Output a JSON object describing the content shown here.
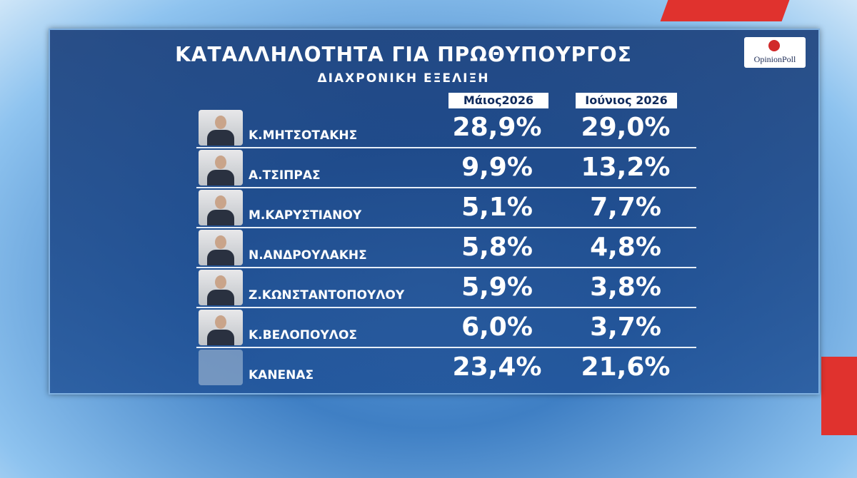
{
  "header": {
    "title": "ΚΑΤΑΛΛΗΛΟΤΗΤΑ ΓΙΑ ΠΡΩΘΥΠΟΥΡΓΟΣ",
    "subtitle": "ΔΙΑΧΡΟΝΙΚΗ ΕΞΕΛΙΞΗ",
    "logo": "OpinionPoll"
  },
  "table": {
    "columns": [
      "Μάιος2026",
      "Ιούνιος 2026"
    ],
    "rows": [
      [
        "Κ.ΜΗΤΣΟΤΑΚΗΣ",
        "28,9%",
        "29,0%"
      ],
      [
        "Α.ΤΣΙΠΡΑΣ",
        "9,9%",
        "13,2%"
      ],
      [
        "Μ.ΚΑΡΥΣΤΙΑΝΟΥ",
        "5,1%",
        "7,7%"
      ],
      [
        "Ν.ΑΝΔΡΟΥΛΑΚΗΣ",
        "5,8%",
        "4,8%"
      ],
      [
        "Ζ.ΚΩΝΣΤΑΝΤΟΠΟΥΛΟΥ",
        "5,9%",
        "3,8%"
      ],
      [
        "Κ.ΒΕΛΟΠΟΥΛΟΣ",
        "6,0%",
        "3,7%"
      ],
      [
        "ΚΑΝΕΝΑΣ",
        "23,4%",
        "21,6%"
      ]
    ]
  }
}
